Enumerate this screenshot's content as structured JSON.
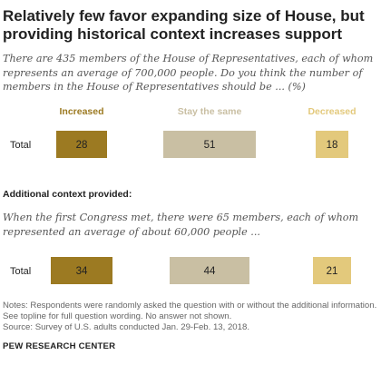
{
  "title": "Relatively few favor expanding size of House, but providing historical context increases support",
  "question": "There are 435 members of the House of Representatives, each of whom represents an average of 700,000 people. Do you think the number of members in the House of Representatives should be ... (%)",
  "subhead": "Additional context provided:",
  "question2": "When the first Congress met, there were 65 members, each of whom represented an average of about 60,000 people ...",
  "note": "Notes: Respondents were randomly asked the question with or without the additional information. See topline for full question wording. No answer not shown.",
  "source": "Source: Survey of U.S. adults conducted Jan. 29-Feb. 13, 2018.",
  "brand": "PEW RESEARCH CENTER",
  "colors": {
    "increased": "#9c7a22",
    "same": "#c9bfa3",
    "decreased": "#e3c97c"
  },
  "chart_data": [
    {
      "type": "bar",
      "categories": [
        "Increased",
        "Stay the same",
        "Decreased"
      ],
      "series": [
        {
          "name": "Total",
          "values": [
            28,
            51,
            18
          ]
        }
      ]
    },
    {
      "type": "bar",
      "categories": [
        "Increased",
        "Stay the same",
        "Decreased"
      ],
      "series": [
        {
          "name": "Total",
          "values": [
            34,
            44,
            21
          ]
        }
      ]
    }
  ]
}
